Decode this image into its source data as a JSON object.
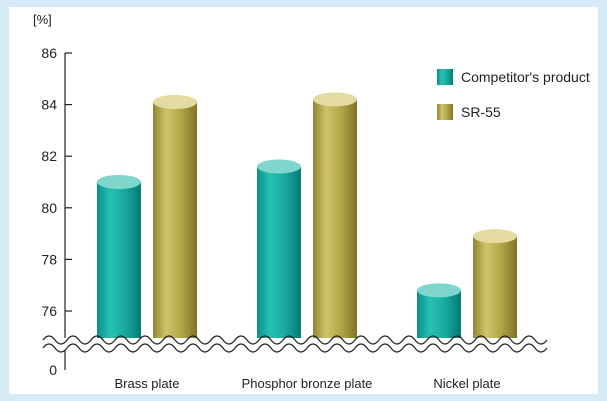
{
  "chart_data": {
    "type": "bar",
    "unit_label": "[%]",
    "title": "",
    "xlabel": "",
    "ylabel": "",
    "categories": [
      "Brass plate",
      "Phosphor bronze plate",
      "Nickel plate"
    ],
    "series": [
      {
        "name": "Competitor's product",
        "values": [
          81.0,
          81.6,
          76.8
        ],
        "color": "#1fb3a6"
      },
      {
        "name": "SR-55",
        "values": [
          84.1,
          84.2,
          78.9
        ],
        "color": "#b9ae4a"
      }
    ],
    "ylim": [
      74,
      86
    ],
    "yticks": [
      "0",
      "76",
      "78",
      "80",
      "82",
      "84",
      "86"
    ],
    "axis_break": true,
    "grid": false,
    "legend_position": "top-right"
  },
  "colors": {
    "background": "#d6ebf7",
    "axis": "#222222"
  }
}
